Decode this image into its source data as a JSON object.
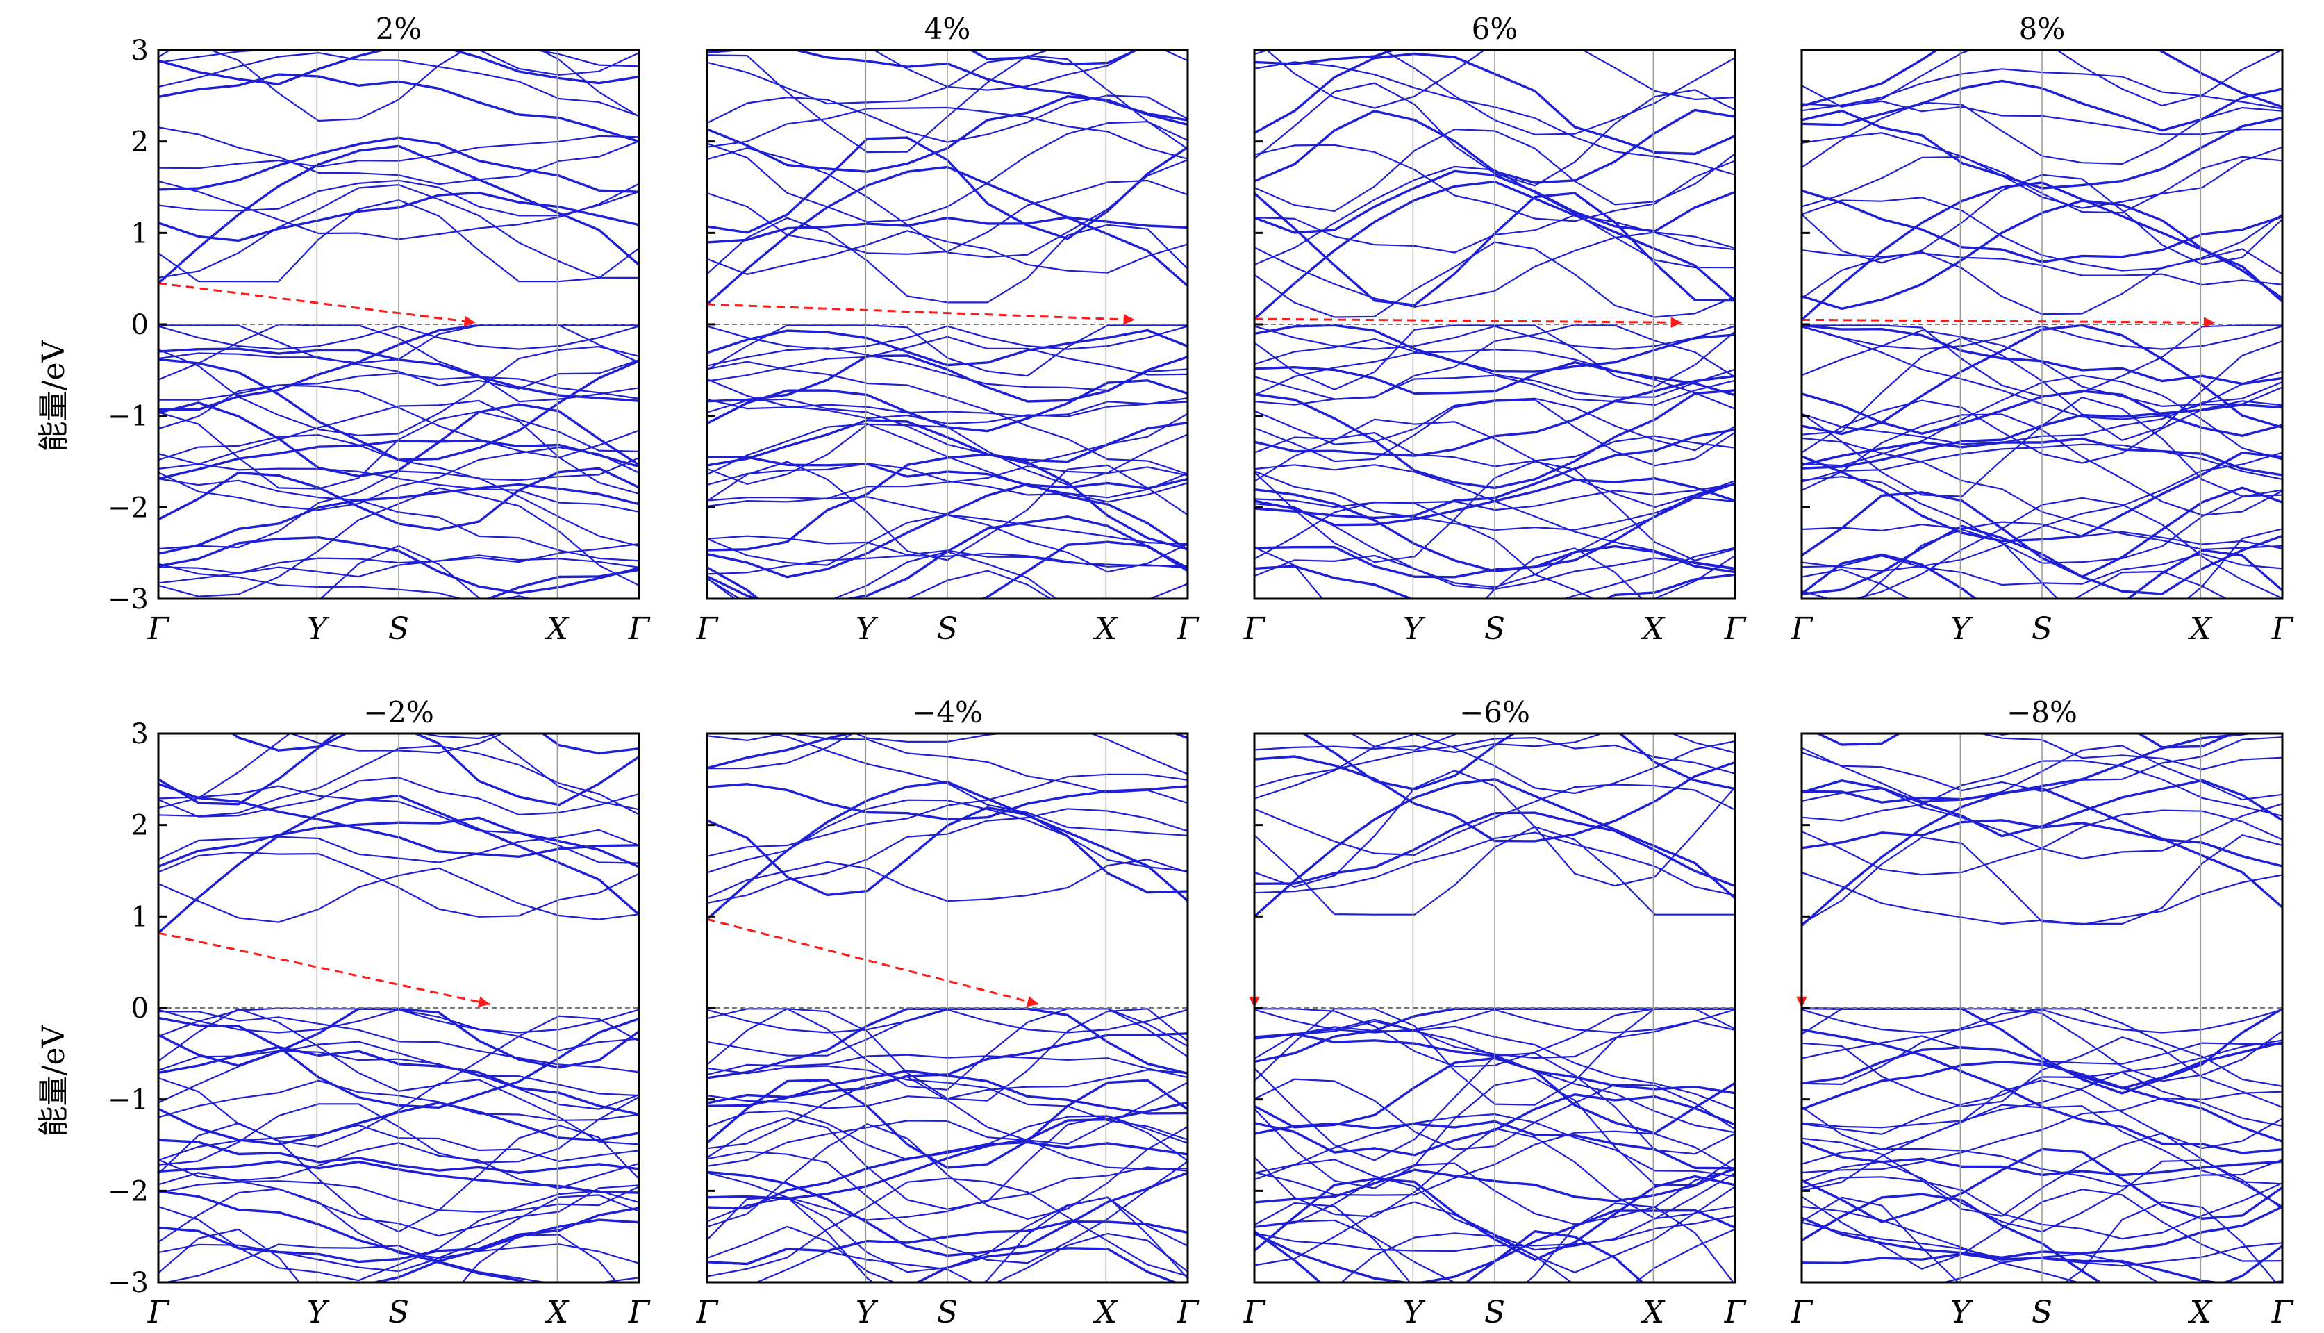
{
  "figure": {
    "ylabel": "能量/eV",
    "k_labels": [
      "Γ",
      "Y",
      "S",
      "X",
      "Γ"
    ],
    "colors": {
      "bands": "#1f1fd6",
      "fermi": "#777777",
      "arrow": "#ff1a1a",
      "kline": "#999999"
    }
  },
  "chart_data": [
    {
      "type": "line",
      "title": "2%",
      "ylim": [
        -3,
        3
      ],
      "yticks": [
        "3",
        "2",
        "1",
        "0",
        "−1",
        "−2",
        "−3"
      ],
      "x": [
        "Γ",
        "Y",
        "S",
        "X",
        "Γ"
      ],
      "cbm": {
        "k": "Γ",
        "energy": 0.45
      },
      "vbm": {
        "k": "S–X",
        "energy": 0.02
      },
      "arrow_to_x": 0.66,
      "gap_type": "indirect",
      "fermi_level": 0
    },
    {
      "type": "line",
      "title": "4%",
      "ylim": [
        -3,
        3
      ],
      "yticks": [
        "3",
        "2",
        "1",
        "0",
        "−1",
        "−2",
        "−3"
      ],
      "x": [
        "Γ",
        "Y",
        "S",
        "X",
        "Γ"
      ],
      "cbm": {
        "k": "Γ",
        "energy": 0.22
      },
      "vbm": {
        "k": "X",
        "energy": 0.05
      },
      "arrow_to_x": 0.89,
      "gap_type": "indirect",
      "fermi_level": 0
    },
    {
      "type": "line",
      "title": "6%",
      "ylim": [
        -3,
        3
      ],
      "yticks": [
        "3",
        "2",
        "1",
        "0",
        "−1",
        "−2",
        "−3"
      ],
      "x": [
        "Γ",
        "Y",
        "S",
        "X",
        "Γ"
      ],
      "cbm": {
        "k": "Γ",
        "energy": 0.06
      },
      "vbm": {
        "k": "X",
        "energy": 0.02
      },
      "arrow_to_x": 0.89,
      "gap_type": "indirect",
      "fermi_level": 0
    },
    {
      "type": "line",
      "title": "8%",
      "ylim": [
        -3,
        3
      ],
      "yticks": [
        "3",
        "2",
        "1",
        "0",
        "−1",
        "−2",
        "−3"
      ],
      "x": [
        "Γ",
        "Y",
        "S",
        "X",
        "Γ"
      ],
      "cbm": {
        "k": "Γ",
        "energy": 0.05
      },
      "vbm": {
        "k": "X",
        "energy": 0.02
      },
      "arrow_to_x": 0.86,
      "gap_type": "indirect",
      "fermi_level": 0
    },
    {
      "type": "line",
      "title": "−2%",
      "ylim": [
        -3,
        3
      ],
      "yticks": [
        "3",
        "2",
        "1",
        "0",
        "−1",
        "−2",
        "−3"
      ],
      "x": [
        "Γ",
        "Y",
        "S",
        "X",
        "Γ"
      ],
      "cbm": {
        "k": "Γ",
        "energy": 0.82
      },
      "vbm": {
        "k": "S–X",
        "energy": 0.04
      },
      "arrow_to_x": 0.69,
      "gap_type": "indirect",
      "fermi_level": 0
    },
    {
      "type": "line",
      "title": "−4%",
      "ylim": [
        -3,
        3
      ],
      "yticks": [
        "3",
        "2",
        "1",
        "0",
        "−1",
        "−2",
        "−3"
      ],
      "x": [
        "Γ",
        "Y",
        "S",
        "X",
        "Γ"
      ],
      "cbm": {
        "k": "Γ",
        "energy": 0.97
      },
      "vbm": {
        "k": "S–X",
        "energy": 0.04
      },
      "arrow_to_x": 0.69,
      "gap_type": "indirect",
      "fermi_level": 0
    },
    {
      "type": "line",
      "title": "−6%",
      "ylim": [
        -3,
        3
      ],
      "yticks": [
        "3",
        "2",
        "1",
        "0",
        "−1",
        "−2",
        "−3"
      ],
      "x": [
        "Γ",
        "Y",
        "S",
        "X",
        "Γ"
      ],
      "cbm": {
        "k": "Γ",
        "energy": 1.0
      },
      "vbm": {
        "k": "Γ",
        "energy": 0.0
      },
      "arrow_to_x": 0.0,
      "gap_type": "direct",
      "fermi_level": 0
    },
    {
      "type": "line",
      "title": "−8%",
      "ylim": [
        -3,
        3
      ],
      "yticks": [
        "3",
        "2",
        "1",
        "0",
        "−1",
        "−2",
        "−3"
      ],
      "x": [
        "Γ",
        "Y",
        "S",
        "X",
        "Γ"
      ],
      "cbm": {
        "k": "Γ",
        "energy": 0.9
      },
      "vbm": {
        "k": "Γ",
        "energy": 0.0
      },
      "arrow_to_x": 0.0,
      "gap_type": "direct",
      "fermi_level": 0
    }
  ]
}
